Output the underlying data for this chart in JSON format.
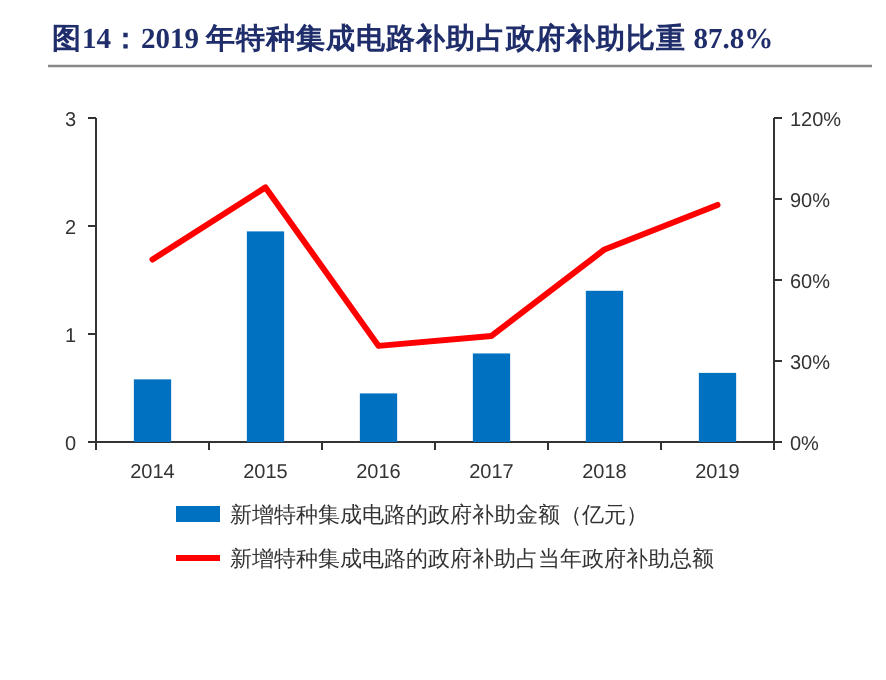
{
  "chart_data": {
    "type": "bar",
    "title": "图14：2019 年特种集成电路补助占政府补助比重 87.8%",
    "categories": [
      "2014",
      "2015",
      "2016",
      "2017",
      "2018",
      "2019"
    ],
    "series": [
      {
        "name": "新增特种集成电路的政府补助金额（亿元）",
        "color": "#0070c0",
        "values": [
          0.58,
          1.95,
          0.45,
          0.82,
          1.4,
          0.64
        ]
      },
      {
        "name": "新增特种集成电路的政府补助占当年政府补助总额",
        "type": "line",
        "axis": "y2",
        "color": "#ff0000",
        "values": [
          67.6,
          94.3,
          35.6,
          39.3,
          71.3,
          87.8
        ]
      }
    ],
    "ylim": [
      0,
      3
    ],
    "yticks": [
      0,
      1,
      2,
      3
    ],
    "y2lim": [
      0,
      120
    ],
    "y2ticks": [
      {
        "value": 0,
        "label": "0%"
      },
      {
        "value": 30,
        "label": "30%"
      },
      {
        "value": 60,
        "label": "60%"
      },
      {
        "value": 90,
        "label": "90%"
      },
      {
        "value": 120,
        "label": "120%"
      }
    ],
    "grid": false,
    "legend": "bottom",
    "marker": "none",
    "line_style": "solid"
  }
}
